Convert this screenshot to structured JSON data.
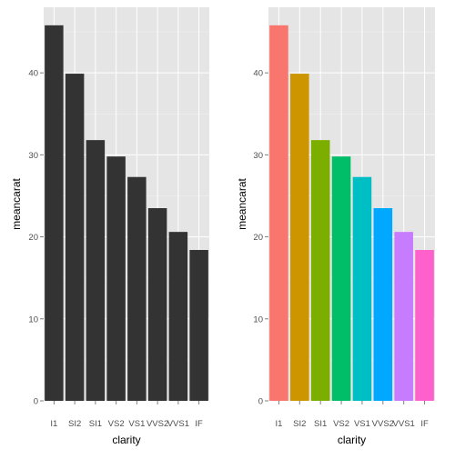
{
  "chart_data": [
    {
      "type": "bar",
      "categories": [
        "I1",
        "SI2",
        "SI1",
        "VS2",
        "VS1",
        "VVS2",
        "VVS1",
        "IF"
      ],
      "values": [
        45.8,
        39.9,
        31.8,
        29.8,
        27.3,
        23.5,
        20.6,
        18.4
      ],
      "xlabel": "clarity",
      "ylabel": "meancarat",
      "ylim": [
        0,
        48
      ],
      "yticks": [
        0,
        10,
        20,
        30,
        40
      ],
      "grid": true,
      "bar_colors": [
        "#333333",
        "#333333",
        "#333333",
        "#333333",
        "#333333",
        "#333333",
        "#333333",
        "#333333"
      ],
      "panel_background": "#e5e5e5",
      "legend": "none"
    },
    {
      "type": "bar",
      "categories": [
        "I1",
        "SI2",
        "SI1",
        "VS2",
        "VS1",
        "VVS2",
        "VVS1",
        "IF"
      ],
      "values": [
        45.8,
        39.9,
        31.8,
        29.8,
        27.3,
        23.5,
        20.6,
        18.4
      ],
      "xlabel": "clarity",
      "ylabel": "meancarat",
      "ylim": [
        0,
        48
      ],
      "yticks": [
        0,
        10,
        20,
        30,
        40
      ],
      "grid": true,
      "bar_colors": [
        "#F8766D",
        "#CD9600",
        "#7CAE00",
        "#00BE67",
        "#00BFC4",
        "#00A9FF",
        "#C77CFF",
        "#FF61CC"
      ],
      "panel_background": "#e5e5e5",
      "legend": "none"
    }
  ]
}
